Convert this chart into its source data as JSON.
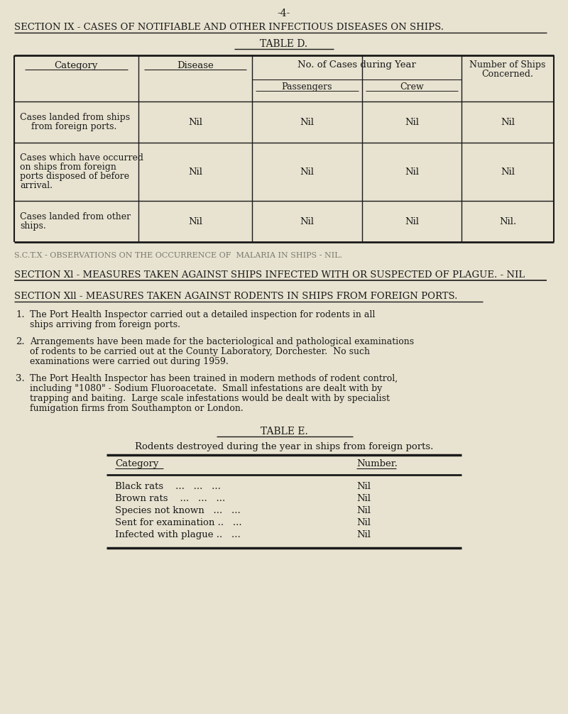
{
  "bg_color": "#e8e3d0",
  "page_number": "-4-",
  "section_ix_title": "SECTION IX - CASES OF NOTIFIABLE AND OTHER INFECTIOUS DISEASES ON SHIPS.",
  "table_d_title": "TABLE D.",
  "table_d_rows": [
    {
      "category_lines": [
        "Cases landed from ships",
        "    from foreign ports."
      ],
      "disease": "Nil",
      "passengers": "Nil",
      "crew": "Nil",
      "ships": "Nil"
    },
    {
      "category_lines": [
        "Cases which have occurred",
        "on ships from foreign",
        "ports disposed of before",
        "arrival."
      ],
      "disease": "Nil",
      "passengers": "Nil",
      "crew": "Nil",
      "ships": "Nil"
    },
    {
      "category_lines": [
        "Cases landed from other",
        "ships."
      ],
      "disease": "Nil",
      "passengers": "Nil",
      "crew": "Nil",
      "ships": "Nil."
    }
  ],
  "section_x_text": "S.C.T.X - OBSERVATIONS ON THE OCCURRENCE OF  MALARIA IN SHIPS - NIL.",
  "section_xi_text": "SECTION Xl - MEASURES TAKEN AGAINST SHIPS INFECTED WITH OR SUSPECTED OF PLAGUE. - NIL",
  "section_xii_title": "SECTION Xll - MEASURES TAKEN AGAINST RODENTS IN SHIPS FROM FOREIGN PORTS.",
  "paragraphs": [
    {
      "num": "1.",
      "lines": [
        "The Port Health Inspector carried out a detailed inspection for rodents in all",
        "ships arriving from foreign ports."
      ]
    },
    {
      "num": "2.",
      "lines": [
        "Arrangements have been made for the bacteriological and pathological examinations",
        "of rodents to be carried out at the County Laboratory, Dorchester.  No such",
        "examinations were carried out during 1959."
      ]
    },
    {
      "num": "3.",
      "lines": [
        "The Port Health Inspector has been trained in modern methods of rodent control,",
        "including \"1080\" - Sodium Fluoroacetate.  Small infestations are dealt with by",
        "trapping and baiting.  Large scale infestations would be dealt with by specialist",
        "fumigation firms from Southampton or London."
      ]
    }
  ],
  "table_e_title": "TABLE E.",
  "table_e_subtitle": "Rodents destroyed during the year in ships from foreign ports.",
  "table_e_col1_header": "Category",
  "table_e_col2_header": "Number.",
  "table_e_rows": [
    [
      "Black rats    ...   ...   ...",
      "Nil"
    ],
    [
      "Brown rats    ...   ...   ...",
      "Nil"
    ],
    [
      "Species not known   ...   ...",
      "Nil"
    ],
    [
      "Sent for examination ..   ...",
      "Nil"
    ],
    [
      "Infected with plague ..   ...",
      "Nil"
    ]
  ],
  "font_color": "#1a1a1a",
  "line_color": "#1a1a1a",
  "faded_color": "#7a7a70"
}
